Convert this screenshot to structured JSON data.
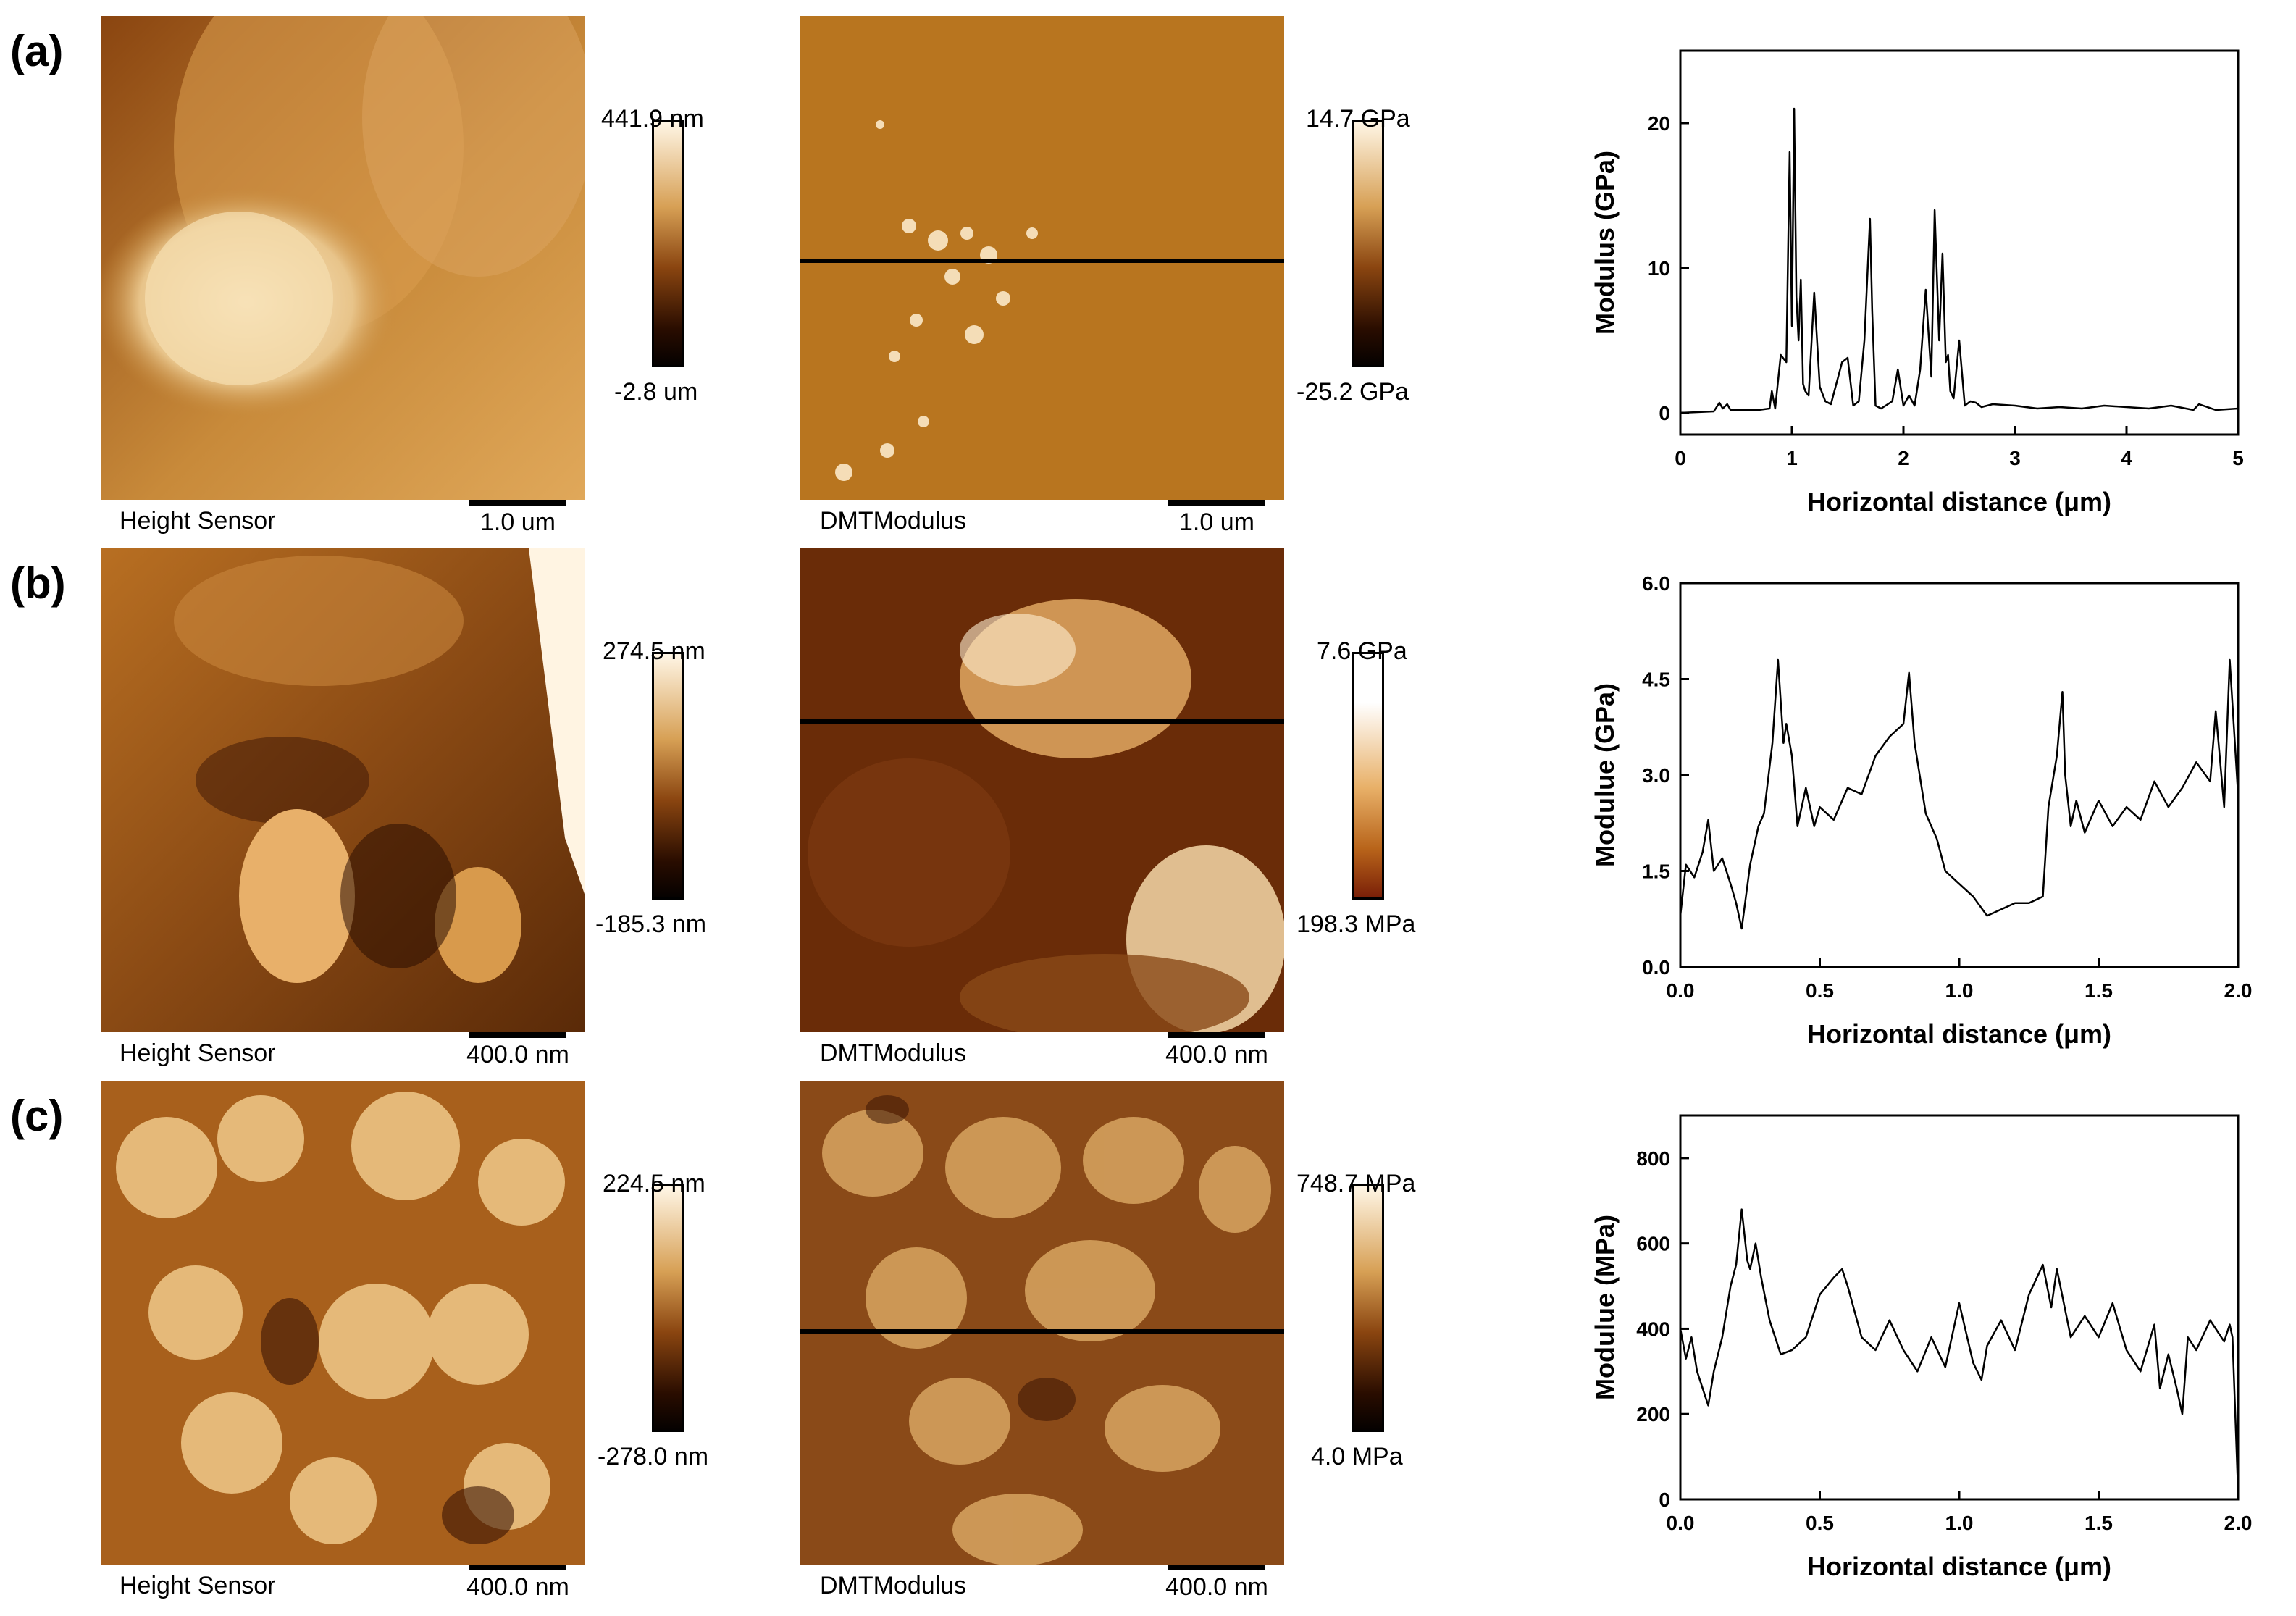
{
  "panels": [
    {
      "label": "(a)",
      "height_image": {
        "caption": "Height Sensor",
        "scalebar": "1.0 um",
        "colorbar_max": "441.9 nm",
        "colorbar_min": "-2.8 um"
      },
      "modulus_image": {
        "caption": "DMTModulus",
        "scalebar": "1.0 um",
        "colorbar_max": "14.7 GPa",
        "colorbar_min": "-25.2 GPa"
      }
    },
    {
      "label": "(b)",
      "height_image": {
        "caption": "Height Sensor",
        "scalebar": "400.0 nm",
        "colorbar_max": "274.5 nm",
        "colorbar_min": "-185.3 nm"
      },
      "modulus_image": {
        "caption": "DMTModulus",
        "scalebar": "400.0 nm",
        "colorbar_max": "7.6 GPa",
        "colorbar_min": "198.3 MPa"
      }
    },
    {
      "label": "(c)",
      "height_image": {
        "caption": "Height Sensor",
        "scalebar": "400.0 nm",
        "colorbar_max": "224.5 nm",
        "colorbar_min": "-278.0 nm"
      },
      "modulus_image": {
        "caption": "DMTModulus",
        "scalebar": "400.0 nm",
        "colorbar_max": "748.7 MPa",
        "colorbar_min": "4.0 MPa"
      }
    }
  ],
  "colors": {
    "afm_dark": "#1a0a00",
    "afm_mid": "#b8741e",
    "afm_light": "#fff6e6",
    "line": "#000000"
  },
  "chart_data": [
    {
      "type": "line",
      "xlabel": "Horizontal distance (μm)",
      "ylabel": "Modulus (GPa)",
      "xlim": [
        0,
        5
      ],
      "ylim": [
        -1.5,
        25
      ],
      "xticks": [
        0,
        1,
        2,
        3,
        4,
        5
      ],
      "yticks": [
        0,
        10,
        20
      ],
      "x": [
        0,
        0.3,
        0.35,
        0.38,
        0.42,
        0.45,
        0.5,
        0.6,
        0.7,
        0.8,
        0.82,
        0.85,
        0.9,
        0.95,
        0.98,
        1.0,
        1.02,
        1.04,
        1.06,
        1.08,
        1.1,
        1.12,
        1.15,
        1.2,
        1.25,
        1.3,
        1.35,
        1.45,
        1.5,
        1.55,
        1.6,
        1.65,
        1.7,
        1.72,
        1.75,
        1.8,
        1.9,
        1.95,
        2.0,
        2.05,
        2.1,
        2.15,
        2.2,
        2.25,
        2.28,
        2.32,
        2.35,
        2.38,
        2.4,
        2.42,
        2.45,
        2.5,
        2.55,
        2.6,
        2.65,
        2.7,
        2.8,
        3.0,
        3.2,
        3.4,
        3.6,
        3.8,
        4.0,
        4.2,
        4.4,
        4.6,
        4.65,
        4.8,
        5.0
      ],
      "series": [
        {
          "values": [
            0,
            0.1,
            0.7,
            0.3,
            0.6,
            0.2,
            0.2,
            0.2,
            0.2,
            0.3,
            1.5,
            0.3,
            4,
            3.5,
            18,
            6,
            21,
            8,
            5,
            9.2,
            2,
            1.5,
            1.2,
            8.3,
            1.8,
            0.8,
            0.6,
            3.5,
            3.8,
            0.5,
            0.8,
            5,
            13.4,
            7,
            0.5,
            0.3,
            0.8,
            3,
            0.5,
            1.2,
            0.5,
            3,
            8.5,
            2.5,
            14,
            5,
            11,
            3.5,
            4,
            1.5,
            1,
            5,
            0.5,
            0.8,
            0.7,
            0.4,
            0.6,
            0.5,
            0.3,
            0.4,
            0.3,
            0.5,
            0.4,
            0.3,
            0.5,
            0.2,
            0.6,
            0.2,
            0.3
          ]
        }
      ]
    },
    {
      "type": "line",
      "xlabel": "Horizontal distance (μm)",
      "ylabel": "Modulue (GPa)",
      "xlim": [
        0,
        2
      ],
      "ylim": [
        0,
        6
      ],
      "xticks": [
        "0.0",
        "0.5",
        "1.0",
        "1.5",
        "2.0"
      ],
      "yticks": [
        "0.0",
        "1.5",
        "3.0",
        "4.5",
        "6.0"
      ],
      "x": [
        0,
        0.02,
        0.05,
        0.08,
        0.1,
        0.12,
        0.15,
        0.18,
        0.2,
        0.22,
        0.25,
        0.28,
        0.3,
        0.33,
        0.35,
        0.37,
        0.38,
        0.4,
        0.42,
        0.45,
        0.48,
        0.5,
        0.55,
        0.6,
        0.65,
        0.7,
        0.75,
        0.8,
        0.82,
        0.84,
        0.88,
        0.92,
        0.95,
        1.0,
        1.05,
        1.1,
        1.15,
        1.2,
        1.25,
        1.3,
        1.32,
        1.35,
        1.37,
        1.38,
        1.4,
        1.42,
        1.45,
        1.5,
        1.55,
        1.6,
        1.65,
        1.7,
        1.75,
        1.8,
        1.85,
        1.9,
        1.92,
        1.95,
        1.97,
        2.0
      ],
      "series": [
        {
          "values": [
            0.8,
            1.6,
            1.4,
            1.8,
            2.3,
            1.5,
            1.7,
            1.3,
            1.0,
            0.6,
            1.6,
            2.2,
            2.4,
            3.5,
            4.8,
            3.5,
            3.8,
            3.3,
            2.2,
            2.8,
            2.2,
            2.5,
            2.3,
            2.8,
            2.7,
            3.3,
            3.6,
            3.8,
            4.6,
            3.5,
            2.4,
            2.0,
            1.5,
            1.3,
            1.1,
            0.8,
            0.9,
            1.0,
            1.0,
            1.1,
            2.5,
            3.3,
            4.3,
            3.0,
            2.2,
            2.6,
            2.1,
            2.6,
            2.2,
            2.5,
            2.3,
            2.9,
            2.5,
            2.8,
            3.2,
            2.9,
            4.0,
            2.5,
            4.8,
            2.7
          ]
        }
      ]
    },
    {
      "type": "line",
      "xlabel": "Horizontal distance (μm)",
      "ylabel": "Modulue (MPa)",
      "xlim": [
        0,
        2
      ],
      "ylim": [
        0,
        900
      ],
      "xticks": [
        "0.0",
        "0.5",
        "1.0",
        "1.5",
        "2.0"
      ],
      "yticks": [
        "0",
        "200",
        "400",
        "600",
        "800"
      ],
      "x": [
        0,
        0.02,
        0.04,
        0.06,
        0.08,
        0.1,
        0.12,
        0.15,
        0.18,
        0.2,
        0.22,
        0.24,
        0.25,
        0.27,
        0.29,
        0.32,
        0.34,
        0.36,
        0.4,
        0.45,
        0.5,
        0.55,
        0.58,
        0.6,
        0.65,
        0.7,
        0.75,
        0.8,
        0.85,
        0.9,
        0.95,
        1.0,
        1.05,
        1.08,
        1.1,
        1.15,
        1.2,
        1.25,
        1.3,
        1.33,
        1.35,
        1.4,
        1.45,
        1.5,
        1.55,
        1.6,
        1.65,
        1.7,
        1.72,
        1.75,
        1.78,
        1.8,
        1.82,
        1.85,
        1.9,
        1.95,
        1.97,
        1.98,
        2.0
      ],
      "series": [
        {
          "values": [
            400,
            330,
            380,
            300,
            260,
            220,
            300,
            380,
            500,
            550,
            680,
            560,
            540,
            600,
            520,
            420,
            380,
            340,
            350,
            380,
            480,
            520,
            540,
            500,
            380,
            350,
            420,
            350,
            300,
            380,
            310,
            460,
            320,
            280,
            360,
            420,
            350,
            480,
            550,
            450,
            540,
            380,
            430,
            380,
            460,
            350,
            300,
            410,
            260,
            340,
            260,
            200,
            380,
            350,
            420,
            370,
            410,
            380,
            20
          ]
        }
      ]
    }
  ]
}
